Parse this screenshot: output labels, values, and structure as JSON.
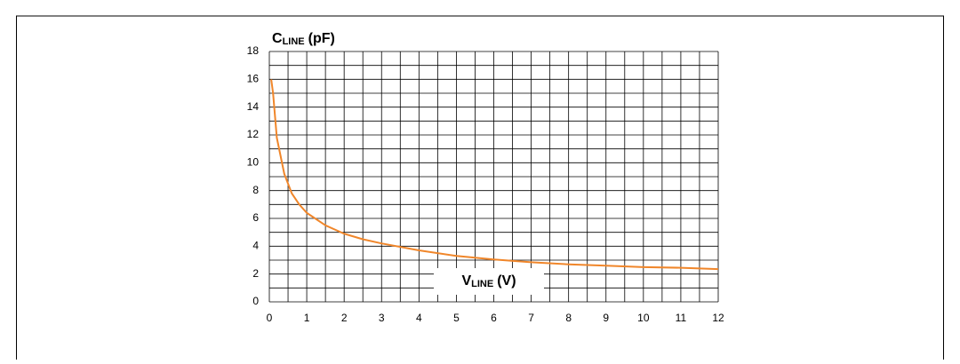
{
  "chart_data": {
    "type": "line",
    "y_label": {
      "main": "C",
      "sub": "LINE",
      "unit": "(pF)"
    },
    "x_label": {
      "main": "V",
      "sub": "LINE",
      "unit": "(V)"
    },
    "xlim": [
      0,
      12
    ],
    "xticks": [
      0,
      1,
      2,
      3,
      4,
      5,
      6,
      7,
      8,
      9,
      10,
      11,
      12
    ],
    "ylim": [
      0,
      18
    ],
    "yticks": [
      0,
      2,
      4,
      6,
      8,
      10,
      12,
      14,
      16,
      18
    ],
    "grid": true,
    "x": [
      0.05,
      0.1,
      0.2,
      0.3,
      0.4,
      0.5,
      0.6,
      0.8,
      1,
      1.5,
      2,
      2.5,
      3,
      4,
      5,
      6,
      7,
      8,
      9,
      10,
      11,
      12
    ],
    "series": [
      {
        "color": "#f0862a",
        "values": [
          16,
          15,
          11.8,
          10.5,
          9.2,
          8.5,
          7.8,
          7,
          6.4,
          5.5,
          4.9,
          4.5,
          4.2,
          3.7,
          3.3,
          3.05,
          2.85,
          2.7,
          2.6,
          2.5,
          2.45,
          2.35
        ]
      }
    ]
  }
}
